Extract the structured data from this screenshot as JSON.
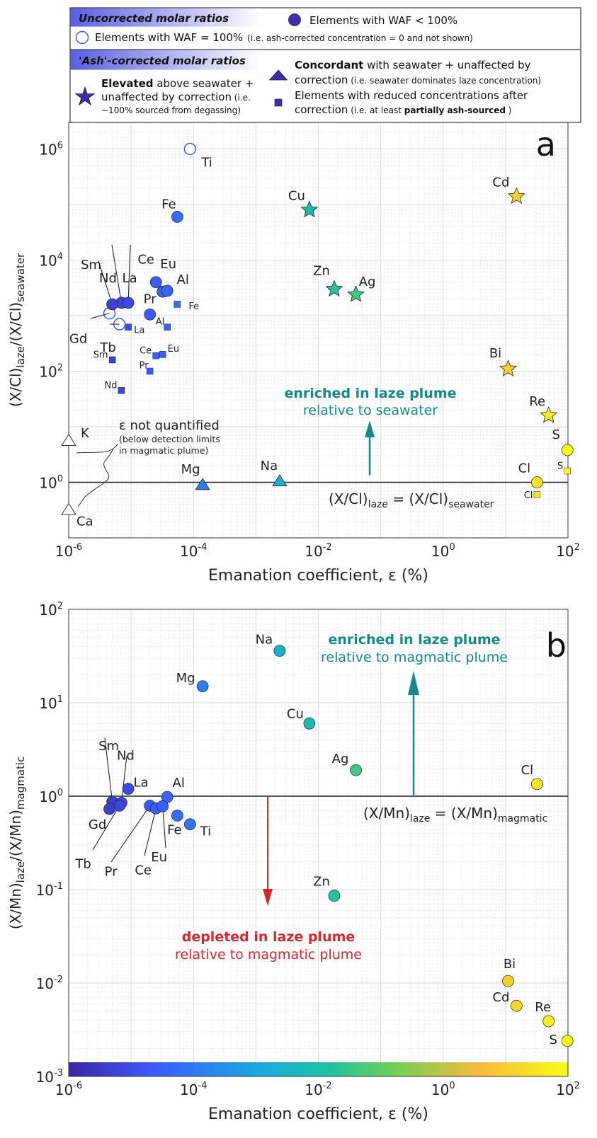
{
  "colors": {
    "grid": "#d9d9d9",
    "axis": "#333333",
    "teal_arrow": "#138a87",
    "red_arrow": "#d8262b",
    "legend_fill_start": "#5a5fe0",
    "legend_fill_end": "#ffffff",
    "open_marker": "#3b5ee8",
    "dark_marker": "#3b2fb0",
    "colorscale": [
      "#3e26a8",
      "#3b5bff",
      "#1aa9df",
      "#1dc2a1",
      "#75d054",
      "#f6ba3e",
      "#f9fb15"
    ]
  },
  "legend": {
    "uncorrected_title": "Uncorrected molar ratios",
    "waf_less": "Elements with WAF < 100%",
    "waf_100": "Elements with WAF = 100%",
    "waf_100_note": "(i.e. ash-corrected concentration = 0 and not shown)",
    "corrected_title": "'Ash'-corrected molar ratios",
    "elevated_bold": "Elevated",
    "elevated_rest": " above seawater +",
    "elevated_line2": "unaffected by correction",
    "elevated_note2": " (i.e.",
    "elevated_note3": "~100% sourced from degassing)",
    "concordant_bold": "Concordant",
    "concordant_rest": " with seawater + unaffected by",
    "concordant_line2": "correction",
    "concordant_note": " (i.e. seawater dominates laze concentration)",
    "reduced_line1": "Elements with reduced concentrations after",
    "reduced_line2": "correction",
    "reduced_note_pre": " (i.e. at least ",
    "reduced_note_bold": "partially ash-sourced",
    "reduced_note_post": " )"
  },
  "chart_data": [
    {
      "panel": "a",
      "type": "scatter",
      "xscale": "log",
      "yscale": "log",
      "xlim": [
        1e-06,
        100
      ],
      "ylim": [
        0.1,
        3000000
      ],
      "x_tick_exponents": [
        -6,
        -4,
        -2,
        0,
        2
      ],
      "y_tick_exponents": [
        0,
        2,
        4,
        6
      ],
      "xlabel": "Emanation coefficient, ε (%)",
      "ylabel_parts": [
        "(X/Cl)",
        "laze",
        "/(X/Cl)",
        "seawater"
      ],
      "uncorrected_circles": [
        {
          "label": "Fe",
          "x": 5.5e-05,
          "y": 60000
        },
        {
          "label": "Nd",
          "x": 7e-06,
          "y": 1700
        },
        {
          "label": "La",
          "x": 9e-06,
          "y": 1700
        },
        {
          "label": "Sm",
          "x": 5e-06,
          "y": 1600
        },
        {
          "label": "Ce",
          "x": 2.5e-05,
          "y": 4000
        },
        {
          "label": "Eu",
          "x": 3.2e-05,
          "y": 2700
        },
        {
          "label": "Al",
          "x": 3.8e-05,
          "y": 2800
        },
        {
          "label": "Pr",
          "x": 2e-05,
          "y": 1050
        }
      ],
      "open_circles": [
        {
          "label": "Ti",
          "x": 8.8e-05,
          "y": 1000000
        },
        {
          "label": "Gd",
          "x": 4.5e-06,
          "y": 1100
        },
        {
          "label": "Tb",
          "x": 6.5e-06,
          "y": 700
        }
      ],
      "reduced_squares": [
        {
          "label": "Fe",
          "x": 5.5e-05,
          "y": 1600
        },
        {
          "label": "La",
          "x": 9e-06,
          "y": 620
        },
        {
          "label": "Al",
          "x": 3.8e-05,
          "y": 620
        },
        {
          "label": "Sm",
          "x": 5e-06,
          "y": 160
        },
        {
          "label": "Ce",
          "x": 2.5e-05,
          "y": 190
        },
        {
          "label": "Eu",
          "x": 3.2e-05,
          "y": 200
        },
        {
          "label": "Pr",
          "x": 2e-05,
          "y": 100
        },
        {
          "label": "Nd",
          "x": 7e-06,
          "y": 45
        },
        {
          "label": "S",
          "x": 98,
          "y": 1.6
        },
        {
          "label": "Cl",
          "x": 32,
          "y": 0.6
        }
      ],
      "elevated_stars": [
        {
          "label": "Cu",
          "x": 0.0072,
          "y": 80000
        },
        {
          "label": "Zn",
          "x": 0.018,
          "y": 3000
        },
        {
          "label": "Ag",
          "x": 0.04,
          "y": 2400
        },
        {
          "label": "Cd",
          "x": 15,
          "y": 140000
        },
        {
          "label": "Bi",
          "x": 11,
          "y": 110
        },
        {
          "label": "Re",
          "x": 49,
          "y": 16
        }
      ],
      "concordant_triangles": [
        {
          "label": "Mg",
          "x": 0.00014,
          "y": 0.9
        },
        {
          "label": "Na",
          "x": 0.0024,
          "y": 1.05
        }
      ],
      "open_triangles": [
        {
          "label": "K",
          "x": 1e-06,
          "y": 5.6
        },
        {
          "label": "Ca",
          "x": 1e-06,
          "y": 0.32
        }
      ],
      "plain_circles": [
        {
          "label": "S",
          "x": 98,
          "y": 3.8
        },
        {
          "label": "Cl",
          "x": 32,
          "y": 1.0
        }
      ],
      "reference_line": {
        "y": 1,
        "label_pre": "(X/Cl)",
        "sub1": "laze",
        "label_mid": " = (X/Cl)",
        "sub2": "seawater"
      },
      "enriched_text": "enriched in laze plume",
      "enriched_sub": "relative to seawater",
      "not_quantified_text": "ε not quantified",
      "not_quantified_sub1": "(below detection limits",
      "not_quantified_sub2": "in magmatic plume)",
      "panel_letter": "a"
    },
    {
      "panel": "b",
      "type": "scatter",
      "xscale": "log",
      "yscale": "log",
      "xlim": [
        1e-06,
        100
      ],
      "ylim": [
        0.001,
        100
      ],
      "x_tick_exponents": [
        -6,
        -4,
        -2,
        0,
        2
      ],
      "y_tick_exponents": [
        -3,
        -2,
        -1,
        0,
        1,
        2
      ],
      "xlabel": "Emanation coefficient, ε (%)",
      "ylabel_parts": [
        "(X/Mn)",
        "laze",
        "/(X/Mn)",
        "magmatic"
      ],
      "points": [
        {
          "label": "Na",
          "x": 0.0024,
          "y": 36
        },
        {
          "label": "Mg",
          "x": 0.00014,
          "y": 15
        },
        {
          "label": "Cu",
          "x": 0.0072,
          "y": 6.0
        },
        {
          "label": "Ag",
          "x": 0.04,
          "y": 1.9
        },
        {
          "label": "Cl",
          "x": 32,
          "y": 1.35
        },
        {
          "label": "La",
          "x": 9e-06,
          "y": 1.2
        },
        {
          "label": "Al",
          "x": 3.8e-05,
          "y": 0.98
        },
        {
          "label": "Sm",
          "x": 5e-06,
          "y": 0.87
        },
        {
          "label": "Nd",
          "x": 7e-06,
          "y": 0.85
        },
        {
          "label": "Tb",
          "x": 6.5e-06,
          "y": 0.79
        },
        {
          "label": "Pr",
          "x": 2e-05,
          "y": 0.79
        },
        {
          "label": "Gd",
          "x": 4.5e-06,
          "y": 0.73
        },
        {
          "label": "Ce",
          "x": 2.5e-05,
          "y": 0.74
        },
        {
          "label": "Eu",
          "x": 3.2e-05,
          "y": 0.78
        },
        {
          "label": "Fe",
          "x": 5.5e-05,
          "y": 0.62
        },
        {
          "label": "Ti",
          "x": 8.8e-05,
          "y": 0.5
        },
        {
          "label": "Zn",
          "x": 0.018,
          "y": 0.086
        },
        {
          "label": "Bi",
          "x": 11,
          "y": 0.0105
        },
        {
          "label": "Cd",
          "x": 15,
          "y": 0.0057
        },
        {
          "label": "Re",
          "x": 49,
          "y": 0.0039
        },
        {
          "label": "S",
          "x": 98,
          "y": 0.0024
        }
      ],
      "reference_line": {
        "y": 1,
        "label_pre": "(X/Mn)",
        "sub1": "laze",
        "label_mid": " = (X/Mn)",
        "sub2": "magmatic"
      },
      "enriched_text": "enriched in laze plume",
      "enriched_sub": "relative to magmatic plume",
      "depleted_text": "depleted in laze plume",
      "depleted_sub": "relative to magmatic plume",
      "panel_letter": "b"
    }
  ]
}
